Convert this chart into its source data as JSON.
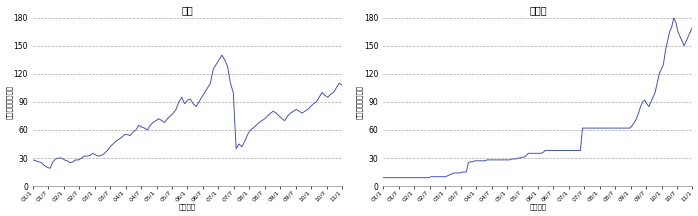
{
  "title_left": "原油",
  "title_right": "鉄鉱石",
  "ylabel_left": "（ドル／バレル）",
  "ylabel_right": "（セント／トン）",
  "xlabel": "（年月）",
  "line_color": "#4455aa",
  "bg_color": "#ffffff",
  "ylim_left": [
    0,
    180
  ],
  "ylim_right": [
    0,
    180
  ],
  "yticks": [
    0,
    30,
    60,
    90,
    120,
    150,
    180
  ],
  "xtick_labels": [
    "01/1",
    "01/7",
    "02/1",
    "02/7",
    "03/1",
    "03/7",
    "04/1",
    "04/7",
    "05/1",
    "05/7",
    "06/1",
    "06/7",
    "07/1",
    "07/7",
    "08/1",
    "08/7",
    "09/1",
    "09/7",
    "10/1",
    "10/7",
    "11/1"
  ],
  "crude_oil": [
    28,
    27,
    26,
    25,
    22,
    20,
    19,
    26,
    29,
    30,
    30,
    28,
    27,
    25,
    26,
    28,
    28,
    30,
    32,
    32,
    33,
    35,
    33,
    32,
    33,
    35,
    38,
    42,
    45,
    48,
    50,
    52,
    55,
    55,
    54,
    58,
    60,
    65,
    63,
    62,
    60,
    65,
    68,
    70,
    72,
    70,
    68,
    72,
    75,
    78,
    82,
    90,
    95,
    88,
    92,
    93,
    88,
    85,
    90,
    95,
    100,
    105,
    110,
    125,
    130,
    135,
    140,
    135,
    128,
    110,
    100,
    40,
    45,
    42,
    48,
    55,
    60,
    62,
    65,
    68,
    70,
    72,
    75,
    78,
    80,
    78,
    75,
    72,
    70,
    75,
    78,
    80,
    82,
    80,
    78,
    80,
    82,
    85,
    88,
    90,
    95,
    100,
    97,
    95,
    98,
    100,
    105,
    110,
    108
  ],
  "iron_ore": [
    9,
    9,
    9,
    9,
    9,
    9,
    9,
    9,
    9,
    9,
    9,
    9,
    9,
    9,
    9,
    9,
    9,
    9,
    9,
    9,
    9,
    9,
    9,
    10,
    10,
    10,
    10,
    10,
    10,
    10,
    10,
    11,
    12,
    13,
    14,
    14,
    14,
    14,
    15,
    15,
    15,
    25,
    26,
    26,
    27,
    27,
    27,
    27,
    27,
    27,
    28,
    28,
    28,
    28,
    28,
    28,
    28,
    28,
    28,
    28,
    28,
    28,
    29,
    29,
    29,
    30,
    30,
    31,
    31,
    33,
    35,
    35,
    35,
    35,
    35,
    35,
    35,
    36,
    38,
    38,
    38,
    38,
    38,
    38,
    38,
    38,
    38,
    38,
    38,
    38,
    38,
    38,
    38,
    38,
    38,
    38,
    62,
    62,
    62,
    62,
    62,
    62,
    62,
    62,
    62,
    62,
    62,
    62,
    62,
    62,
    62,
    62,
    62,
    62,
    62,
    62,
    62,
    62,
    62,
    62,
    65,
    68,
    72,
    78,
    85,
    90,
    92,
    88,
    85,
    90,
    95,
    100,
    110,
    120,
    125,
    130,
    145,
    155,
    165,
    170,
    180,
    175,
    165,
    160,
    155,
    150,
    155,
    160,
    165,
    170
  ]
}
